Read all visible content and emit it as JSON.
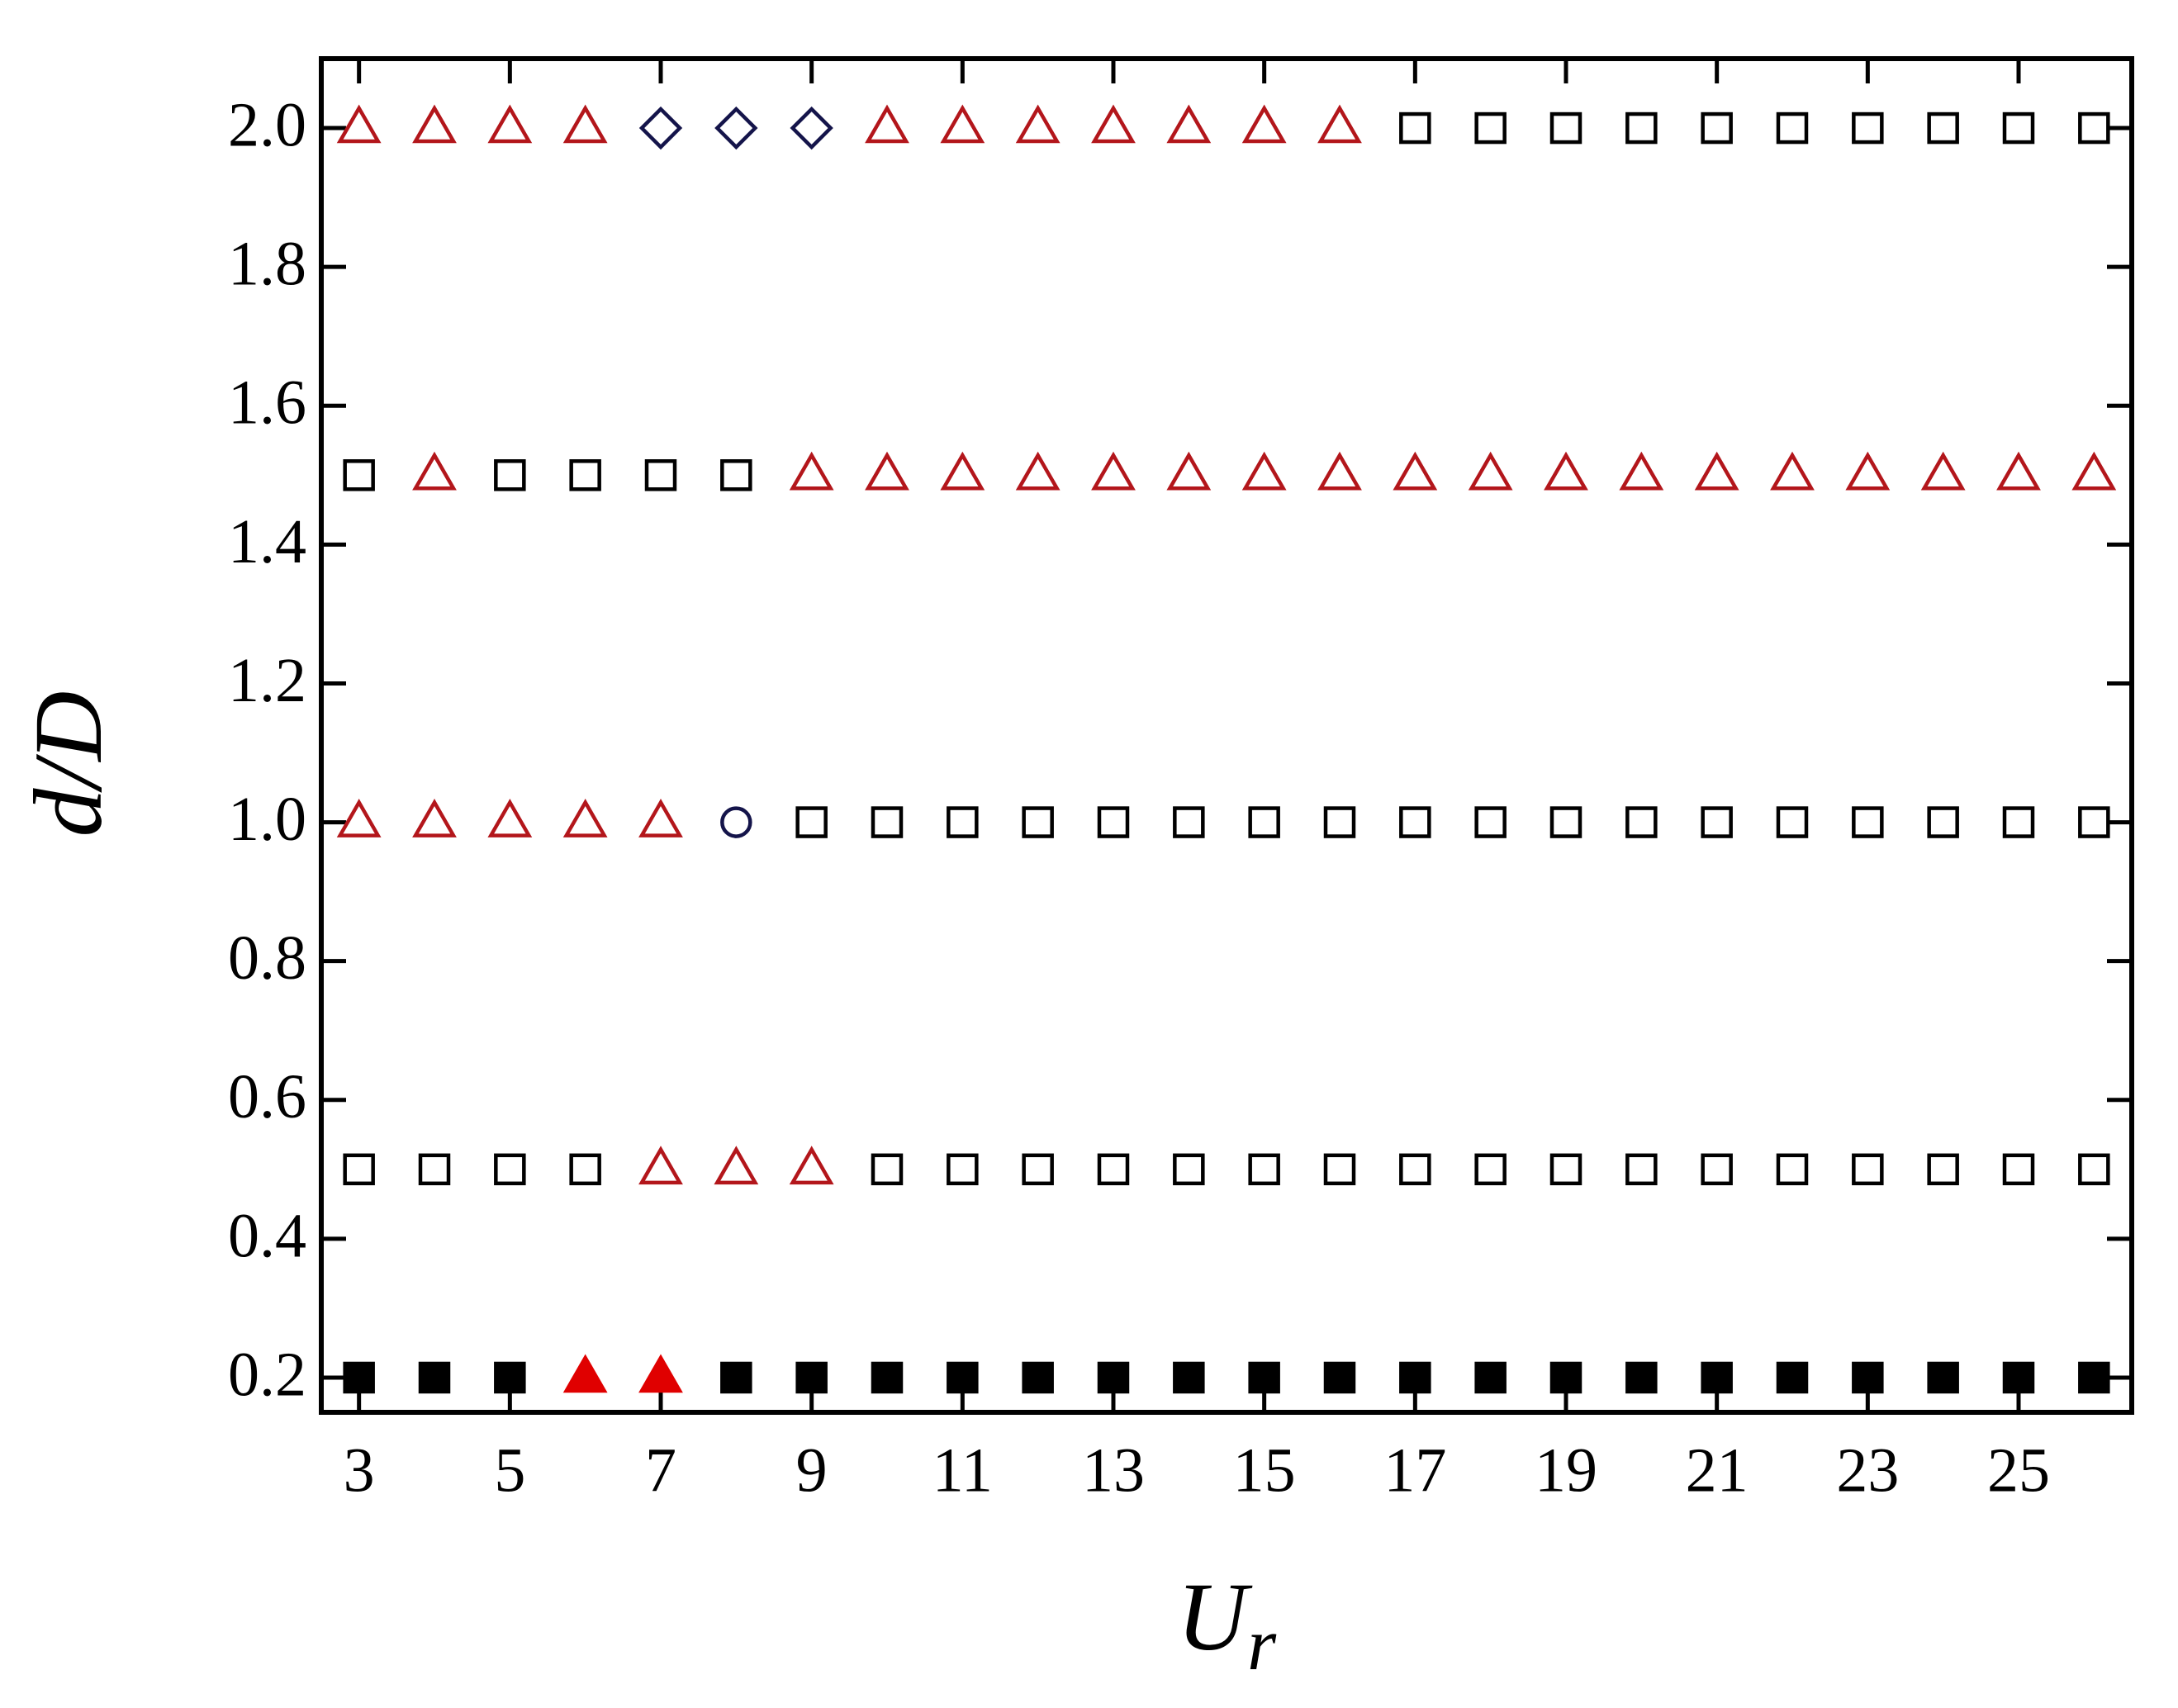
{
  "chart_data": {
    "type": "scatter",
    "xlabel": {
      "main": "U",
      "sub": "r"
    },
    "ylabel": "d/D",
    "xlim": [
      2.5,
      26.5
    ],
    "ylim": [
      0.15,
      2.1
    ],
    "xticks": [
      3,
      5,
      7,
      9,
      11,
      13,
      15,
      17,
      19,
      21,
      23,
      25
    ],
    "yticks": [
      0.2,
      0.4,
      0.6,
      0.8,
      {
        "value": 1,
        "label": "1.0"
      },
      1.2,
      1.4,
      1.6,
      1.8,
      {
        "value": 2,
        "label": "2.0"
      }
    ],
    "series": [
      {
        "marker": "square",
        "filled": false,
        "color": "#000000",
        "x": [
          17,
          18,
          19,
          20,
          21,
          22,
          23,
          24,
          25,
          26,
          3,
          5,
          6,
          7,
          8,
          9,
          10,
          11,
          12,
          13,
          14,
          15,
          16,
          17,
          18,
          19,
          20,
          21,
          22,
          23,
          24,
          25,
          26,
          3,
          4,
          5,
          6,
          10,
          11,
          12,
          13,
          14,
          15,
          16,
          17,
          18,
          19,
          20,
          21,
          22,
          23,
          24,
          25,
          26
        ],
        "y": [
          2,
          2,
          2,
          2,
          2,
          2,
          2,
          2,
          2,
          2,
          1.5,
          1.5,
          1.5,
          1.5,
          1.5,
          1,
          1,
          1,
          1,
          1,
          1,
          1,
          1,
          1,
          1,
          1,
          1,
          1,
          1,
          1,
          1,
          1,
          1,
          0.5,
          0.5,
          0.5,
          0.5,
          0.5,
          0.5,
          0.5,
          0.5,
          0.5,
          0.5,
          0.5,
          0.5,
          0.5,
          0.5,
          0.5,
          0.5,
          0.5,
          0.5,
          0.5,
          0.5,
          0.5
        ]
      },
      {
        "marker": "triangle",
        "filled": false,
        "color": "#b3161b",
        "x": [
          3,
          4,
          5,
          6,
          10,
          11,
          12,
          13,
          14,
          15,
          16,
          4,
          9,
          10,
          11,
          12,
          13,
          14,
          15,
          16,
          17,
          18,
          19,
          20,
          21,
          22,
          23,
          24,
          25,
          26,
          3,
          4,
          5,
          6,
          7,
          7,
          8,
          9
        ],
        "y": [
          2,
          2,
          2,
          2,
          2,
          2,
          2,
          2,
          2,
          2,
          2,
          1.5,
          1.5,
          1.5,
          1.5,
          1.5,
          1.5,
          1.5,
          1.5,
          1.5,
          1.5,
          1.5,
          1.5,
          1.5,
          1.5,
          1.5,
          1.5,
          1.5,
          1.5,
          1.5,
          1,
          1,
          1,
          1,
          1,
          0.5,
          0.5,
          0.5
        ]
      },
      {
        "marker": "diamond",
        "filled": false,
        "color": "#14144a",
        "x": [
          7,
          8,
          9
        ],
        "y": [
          2,
          2,
          2
        ]
      },
      {
        "marker": "circle",
        "filled": false,
        "color": "#14144a",
        "x": [
          8
        ],
        "y": [
          1
        ]
      },
      {
        "marker": "square",
        "filled": true,
        "color": "#000000",
        "x": [
          3,
          4,
          5,
          8,
          9,
          10,
          11,
          12,
          13,
          14,
          15,
          16,
          17,
          18,
          19,
          20,
          21,
          22,
          23,
          24,
          25,
          26
        ],
        "y": [
          0.2,
          0.2,
          0.2,
          0.2,
          0.2,
          0.2,
          0.2,
          0.2,
          0.2,
          0.2,
          0.2,
          0.2,
          0.2,
          0.2,
          0.2,
          0.2,
          0.2,
          0.2,
          0.2,
          0.2,
          0.2,
          0.2
        ]
      },
      {
        "marker": "triangle",
        "filled": true,
        "color": "#e00000",
        "x": [
          6,
          7
        ],
        "y": [
          0.2,
          0.2
        ]
      }
    ]
  }
}
